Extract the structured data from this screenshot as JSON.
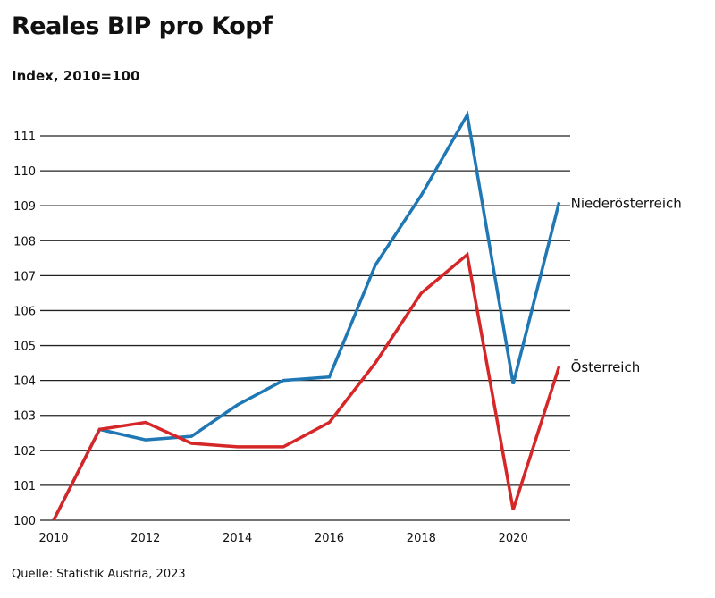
{
  "chart_data": {
    "type": "line",
    "title": "Reales BIP pro Kopf",
    "subtitle": "Index, 2010=100",
    "source": "Quelle: Statistik Austria, 2023",
    "x": [
      2010,
      2011,
      2012,
      2013,
      2014,
      2015,
      2016,
      2017,
      2018,
      2019,
      2020,
      2021
    ],
    "xticks": [
      "2010",
      "2012",
      "2014",
      "2016",
      "2018",
      "2020"
    ],
    "yticks": [
      "100",
      "101",
      "102",
      "103",
      "104",
      "105",
      "106",
      "107",
      "108",
      "109",
      "110",
      "111"
    ],
    "ylim": [
      100,
      111
    ],
    "xlim": [
      2010,
      2021
    ],
    "grid": "horizontal",
    "legend": "direct labels at line ends",
    "series": [
      {
        "name": "Niederösterreich",
        "color": "#1f77b4",
        "values": [
          100,
          102.6,
          102.3,
          102.4,
          103.3,
          104.0,
          104.1,
          107.3,
          109.3,
          111.6,
          103.9,
          109.1
        ]
      },
      {
        "name": "Österreich",
        "color": "#d62728",
        "values": [
          100,
          102.6,
          102.8,
          102.2,
          102.1,
          102.1,
          102.8,
          104.5,
          106.5,
          107.6,
          100.3,
          104.4
        ]
      }
    ]
  }
}
